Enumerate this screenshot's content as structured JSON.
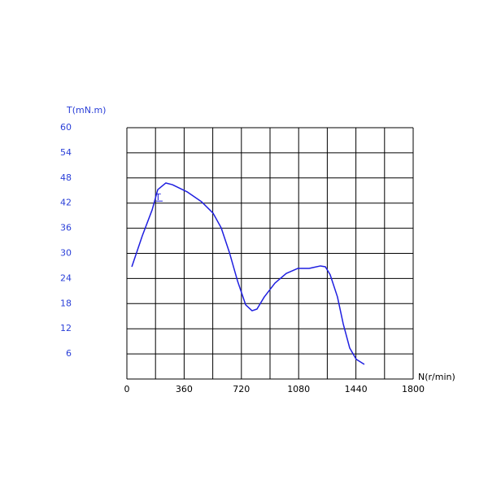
{
  "chart_data": {
    "type": "line",
    "y_label": "T(mN.m)",
    "x_label": "N(r/min)",
    "annotation": "T",
    "x": [
      31,
      97,
      159,
      194,
      245,
      286,
      378,
      470,
      542,
      593,
      644,
      695,
      747,
      787,
      818,
      864,
      931,
      1002,
      1074,
      1145,
      1217,
      1248,
      1278,
      1324,
      1360,
      1401,
      1442,
      1493
    ],
    "series": [
      {
        "name": "T",
        "color": "#1f1fe0",
        "values": [
          26.8,
          34.2,
          40.4,
          45.2,
          46.8,
          46.4,
          44.7,
          42.3,
          39.6,
          36.1,
          30.3,
          23.5,
          17.7,
          16.3,
          16.7,
          19.6,
          22.9,
          25.2,
          26.4,
          26.4,
          27.0,
          26.8,
          24.9,
          19.6,
          13.2,
          7.4,
          4.7,
          3.5
        ]
      }
    ],
    "xlim": [
      0,
      1800
    ],
    "xticks": [
      0,
      360,
      720,
      1080,
      1440,
      1800
    ],
    "x_grid": [
      0,
      180,
      360,
      540,
      720,
      900,
      1080,
      1260,
      1440,
      1620,
      1800
    ],
    "ylim": [
      0,
      60
    ],
    "yticks": [
      6,
      12,
      18,
      24,
      30,
      36,
      42,
      48,
      54,
      60
    ],
    "y_grid": [
      0,
      6,
      12,
      18,
      24,
      30,
      36,
      42,
      48,
      54,
      60
    ],
    "ytick_color": "#2a3fd8",
    "grid": true
  }
}
